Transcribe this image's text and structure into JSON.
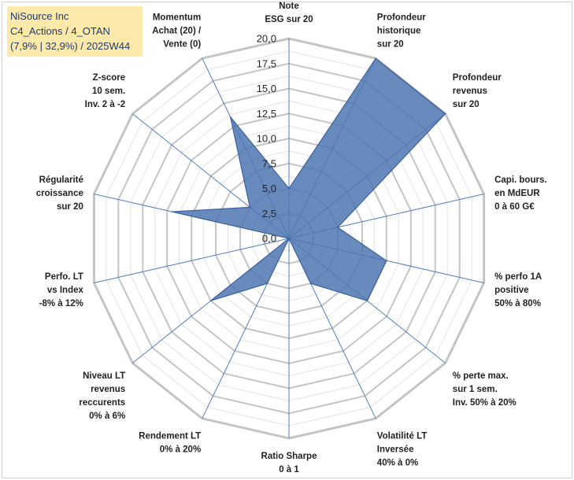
{
  "header": {
    "line1": "NiSource Inc",
    "line2": "C4_Actions / 4_OTAN",
    "line3": "(7,9% | 32,9%) / 2025W44"
  },
  "chart_data": {
    "type": "radar",
    "title": "NiSource Inc",
    "rlim": [
      0,
      20
    ],
    "ticks": [
      "0,0",
      "2,5",
      "5,0",
      "7,5",
      "10,0",
      "12,5",
      "15,0",
      "17,5",
      "20,0"
    ],
    "axes": [
      [
        "Note",
        "ESG sur 20"
      ],
      [
        "Profondeur",
        "historique",
        "sur 20"
      ],
      [
        "Profondeur",
        "revenus",
        "sur 20"
      ],
      [
        "Capi. bours.",
        "en MdEUR",
        "0 à 60 G€"
      ],
      [
        "% perfo 1A",
        "positive",
        "50% à 80%"
      ],
      [
        "% perte max.",
        "sur 1 sem.",
        "Inv. 50% à 20%"
      ],
      [
        "Volatilité LT",
        "Inversée",
        "40% à 0%"
      ],
      [
        "Ratio Sharpe",
        "0 à 1"
      ],
      [
        "Rendement LT",
        "0% à 20%"
      ],
      [
        "Niveau LT",
        "revenus",
        "reccurents",
        "0% à 6%"
      ],
      [
        "Perfo. LT",
        "vs Index",
        "-8% à 12%"
      ],
      [
        "Régularité",
        "croissance",
        "sur 20"
      ],
      [
        "Z-score",
        "10 sem.",
        "Inv. 2 à -2"
      ],
      [
        "Momentum",
        "Achat (20) /",
        "Vente (0)"
      ]
    ],
    "series": [
      {
        "name": "NiSource Inc",
        "values": [
          5.0,
          20.0,
          20.0,
          5.0,
          10.0,
          10.0,
          5.0,
          0.0,
          5.0,
          10.0,
          0.0,
          12.0,
          5.0,
          13.5
        ],
        "color": "#4f76b0"
      }
    ],
    "grid": true
  }
}
